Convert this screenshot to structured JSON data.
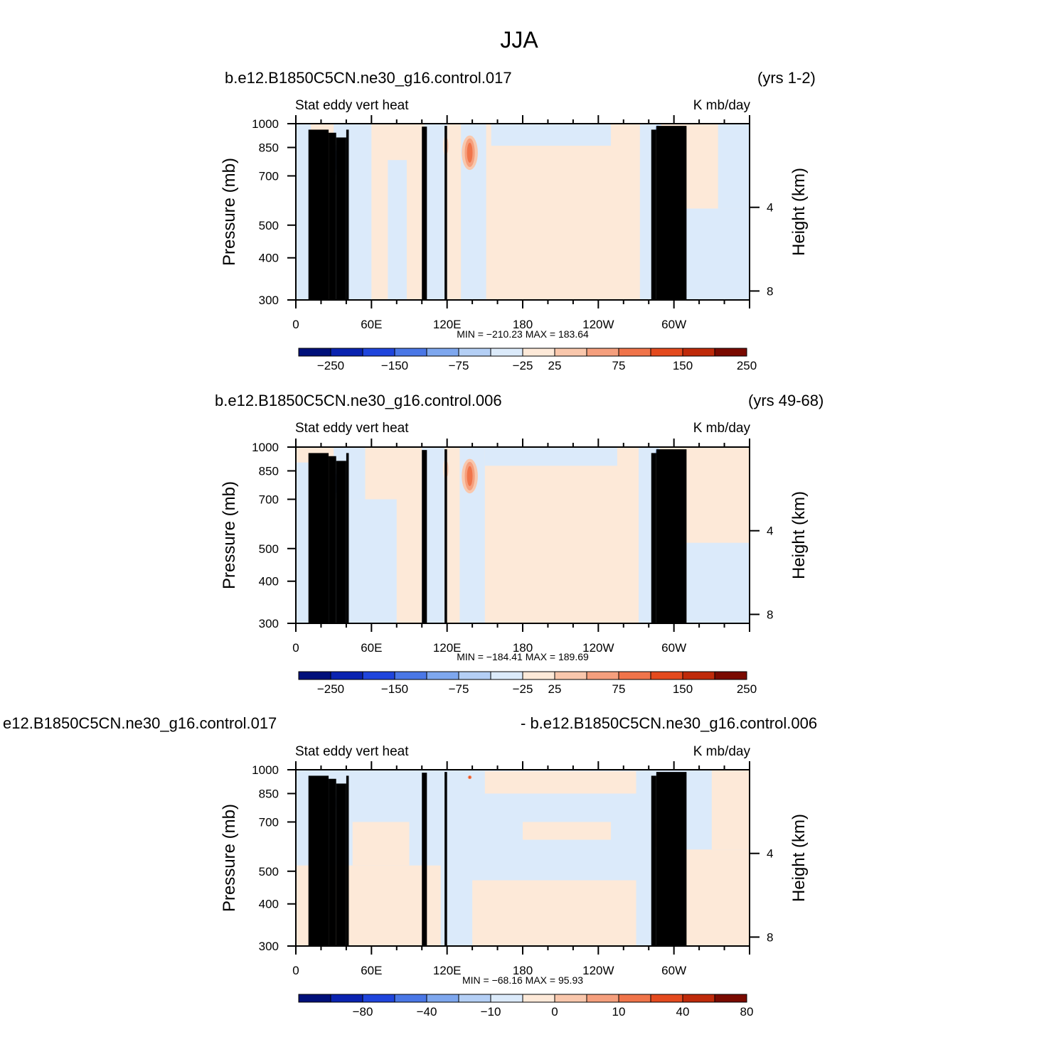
{
  "figure": {
    "title": "JJA"
  },
  "chart_data": [
    {
      "type": "heatmap",
      "case_label": "b.e12.B1850C5CN.ne30_g16.control.017",
      "years_label": "(yrs 1-2)",
      "title": "Stat  eddy  vert  heat",
      "units": "K  mb/day",
      "xlabel": "",
      "ylabel": "Pressure  (mb)",
      "ylabel_right": "Height  (km)",
      "x_ticks": [
        "0",
        "60E",
        "120E",
        "180",
        "120W",
        "60W"
      ],
      "y_ticks": [
        "300",
        "400",
        "500",
        "700",
        "850",
        "1000"
      ],
      "y_right_ticks": [
        "8",
        "4"
      ],
      "xlim": [
        0,
        360
      ],
      "ylim": [
        1000,
        300
      ],
      "min_max_text": "MIN = −210.23   MAX = 183.64",
      "min": -210.23,
      "max": 183.64,
      "colorbar_labels": [
        "−250",
        "−150",
        "−75",
        "−25",
        "25",
        "75",
        "150",
        "250"
      ],
      "features": [
        {
          "kind": "background",
          "sign": "pos",
          "level": 1,
          "lon": [
            0,
            360
          ]
        },
        {
          "kind": "band",
          "sign": "neg",
          "level": 1,
          "lon": [
            0,
            12
          ],
          "p": [
            300,
            1000
          ]
        },
        {
          "kind": "band",
          "sign": "neg",
          "level": 1,
          "lon": [
            30,
            60
          ],
          "p": [
            300,
            1000
          ]
        },
        {
          "kind": "band",
          "sign": "neg",
          "level": 1,
          "lon": [
            73,
            88
          ],
          "p": [
            300,
            780
          ]
        },
        {
          "kind": "band",
          "sign": "neg",
          "level": 1,
          "lon": [
            102,
            120
          ],
          "p": [
            300,
            1000
          ]
        },
        {
          "kind": "band",
          "sign": "neg",
          "level": 1,
          "lon": [
            131,
            151
          ],
          "p": [
            300,
            1000
          ]
        },
        {
          "kind": "band",
          "sign": "neg",
          "level": 1,
          "lon": [
            155,
            250
          ],
          "p": [
            860,
            1000
          ]
        },
        {
          "kind": "band",
          "sign": "neg",
          "level": 1,
          "lon": [
            273,
            290
          ],
          "p": [
            300,
            1000
          ]
        },
        {
          "kind": "band",
          "sign": "neg",
          "level": 1,
          "lon": [
            307,
            360
          ],
          "p": [
            300,
            560
          ]
        },
        {
          "kind": "band",
          "sign": "neg",
          "level": 1,
          "lon": [
            335,
            360
          ],
          "p": [
            560,
            1000
          ]
        },
        {
          "kind": "blob",
          "sign": "neg",
          "level": 4,
          "lon": 35,
          "p": 780,
          "w": 4,
          "h": 150
        },
        {
          "kind": "blob",
          "sign": "pos",
          "level": 4,
          "lon": 138,
          "p": 820,
          "w": 4,
          "h": 160
        },
        {
          "kind": "blob",
          "sign": "pos",
          "level": 2,
          "lon": 120,
          "p": 860,
          "w": 2,
          "h": 120
        },
        {
          "kind": "line",
          "sign": "neg",
          "level": 5,
          "lon": 282,
          "p": [
            300,
            930
          ],
          "w": 2
        },
        {
          "kind": "blob",
          "sign": "pos",
          "level": 3,
          "lon": 290,
          "p": 780,
          "w": 4,
          "h": 230
        },
        {
          "kind": "blob",
          "sign": "pos",
          "level": 2,
          "lon": 296,
          "p": 760,
          "w": 4,
          "h": 260
        },
        {
          "kind": "blob",
          "sign": "neg",
          "level": 3,
          "lon": 287,
          "p": 960,
          "w": 2,
          "h": 60
        }
      ],
      "topography": [
        {
          "lon": [
            10,
            26
          ],
          "p": 960
        },
        {
          "lon": [
            26,
            32
          ],
          "p": 940
        },
        {
          "lon": [
            32,
            40
          ],
          "p": 910
        },
        {
          "lon": [
            40,
            42
          ],
          "p": 960
        },
        {
          "lon": [
            100,
            104
          ],
          "p": 980
        },
        {
          "lon": [
            118,
            120
          ],
          "p": 985
        },
        {
          "lon": [
            282,
            286
          ],
          "p": 960
        },
        {
          "lon": [
            286,
            310
          ],
          "p": 985
        }
      ]
    },
    {
      "type": "heatmap",
      "case_label": "b.e12.B1850C5CN.ne30_g16.control.006",
      "years_label": "(yrs 49-68)",
      "title": "Stat  eddy  vert  heat",
      "units": "K  mb/day",
      "xlabel": "",
      "ylabel": "Pressure  (mb)",
      "ylabel_right": "Height  (km)",
      "x_ticks": [
        "0",
        "60E",
        "120E",
        "180",
        "120W",
        "60W"
      ],
      "y_ticks": [
        "300",
        "400",
        "500",
        "700",
        "850",
        "1000"
      ],
      "y_right_ticks": [
        "8",
        "4"
      ],
      "xlim": [
        0,
        360
      ],
      "ylim": [
        1000,
        300
      ],
      "min_max_text": "MIN = −184.41   MAX = 189.69",
      "min": -184.41,
      "max": 189.69,
      "colorbar_labels": [
        "−250",
        "−150",
        "−75",
        "−25",
        "25",
        "75",
        "150",
        "250"
      ],
      "features": [
        {
          "kind": "background",
          "sign": "pos",
          "level": 1,
          "lon": [
            0,
            360
          ]
        },
        {
          "kind": "band",
          "sign": "neg",
          "level": 1,
          "lon": [
            0,
            10
          ],
          "p": [
            300,
            900
          ]
        },
        {
          "kind": "band",
          "sign": "neg",
          "level": 1,
          "lon": [
            22,
            80
          ],
          "p": [
            300,
            700
          ]
        },
        {
          "kind": "band",
          "sign": "neg",
          "level": 1,
          "lon": [
            30,
            55
          ],
          "p": [
            700,
            1000
          ]
        },
        {
          "kind": "band",
          "sign": "neg",
          "level": 1,
          "lon": [
            100,
            118
          ],
          "p": [
            300,
            1000
          ]
        },
        {
          "kind": "band",
          "sign": "neg",
          "level": 1,
          "lon": [
            130,
            150
          ],
          "p": [
            300,
            1000
          ]
        },
        {
          "kind": "band",
          "sign": "neg",
          "level": 1,
          "lon": [
            150,
            255
          ],
          "p": [
            880,
            1000
          ]
        },
        {
          "kind": "band",
          "sign": "neg",
          "level": 1,
          "lon": [
            272,
            288
          ],
          "p": [
            300,
            1000
          ]
        },
        {
          "kind": "band",
          "sign": "neg",
          "level": 1,
          "lon": [
            310,
            360
          ],
          "p": [
            300,
            520
          ]
        },
        {
          "kind": "blob",
          "sign": "neg",
          "level": 4,
          "lon": 35,
          "p": 780,
          "w": 4,
          "h": 150
        },
        {
          "kind": "blob",
          "sign": "pos",
          "level": 4,
          "lon": 138,
          "p": 820,
          "w": 4,
          "h": 160
        },
        {
          "kind": "blob",
          "sign": "pos",
          "level": 2,
          "lon": 120,
          "p": 860,
          "w": 2,
          "h": 120
        },
        {
          "kind": "line",
          "sign": "neg",
          "level": 5,
          "lon": 282,
          "p": [
            300,
            930
          ],
          "w": 2
        },
        {
          "kind": "blob",
          "sign": "pos",
          "level": 3,
          "lon": 290,
          "p": 780,
          "w": 4,
          "h": 230
        },
        {
          "kind": "blob",
          "sign": "pos",
          "level": 2,
          "lon": 296,
          "p": 760,
          "w": 4,
          "h": 260
        },
        {
          "kind": "blob",
          "sign": "neg",
          "level": 3,
          "lon": 287,
          "p": 960,
          "w": 2,
          "h": 60
        }
      ],
      "topography": [
        {
          "lon": [
            10,
            26
          ],
          "p": 960
        },
        {
          "lon": [
            26,
            32
          ],
          "p": 940
        },
        {
          "lon": [
            32,
            40
          ],
          "p": 910
        },
        {
          "lon": [
            40,
            42
          ],
          "p": 960
        },
        {
          "lon": [
            100,
            104
          ],
          "p": 980
        },
        {
          "lon": [
            118,
            120
          ],
          "p": 985
        },
        {
          "lon": [
            282,
            286
          ],
          "p": 960
        },
        {
          "lon": [
            286,
            310
          ],
          "p": 985
        }
      ]
    },
    {
      "type": "heatmap",
      "case_label": "e12.B1850C5CN.ne30_g16.control.017",
      "years_label": "- b.e12.B1850C5CN.ne30_g16.control.006",
      "title": "Stat  eddy  vert  heat",
      "units": "K  mb/day",
      "xlabel": "",
      "ylabel": "Pressure  (mb)",
      "ylabel_right": "Height  (km)",
      "x_ticks": [
        "0",
        "60E",
        "120E",
        "180",
        "120W",
        "60W"
      ],
      "y_ticks": [
        "300",
        "400",
        "500",
        "700",
        "850",
        "1000"
      ],
      "y_right_ticks": [
        "8",
        "4"
      ],
      "xlim": [
        0,
        360
      ],
      "ylim": [
        1000,
        300
      ],
      "min_max_text": "MIN = −68.16   MAX =   95.93",
      "min": -68.16,
      "max": 95.93,
      "colorbar_labels": [
        "−80",
        "−40",
        "−10",
        "0",
        "10",
        "40",
        "80"
      ],
      "features": [
        {
          "kind": "background",
          "sign": "neg",
          "level": 1,
          "lon": [
            0,
            360
          ]
        },
        {
          "kind": "band",
          "sign": "pos",
          "level": 1,
          "lon": [
            0,
            115
          ],
          "p": [
            300,
            520
          ]
        },
        {
          "kind": "band",
          "sign": "pos",
          "level": 1,
          "lon": [
            45,
            90
          ],
          "p": [
            520,
            700
          ]
        },
        {
          "kind": "band",
          "sign": "pos",
          "level": 1,
          "lon": [
            140,
            270
          ],
          "p": [
            300,
            470
          ]
        },
        {
          "kind": "band",
          "sign": "pos",
          "level": 1,
          "lon": [
            180,
            250
          ],
          "p": [
            620,
            700
          ]
        },
        {
          "kind": "band",
          "sign": "pos",
          "level": 1,
          "lon": [
            150,
            270
          ],
          "p": [
            850,
            990
          ]
        },
        {
          "kind": "band",
          "sign": "pos",
          "level": 1,
          "lon": [
            295,
            360
          ],
          "p": [
            300,
            580
          ]
        },
        {
          "kind": "band",
          "sign": "pos",
          "level": 1,
          "lon": [
            330,
            360
          ],
          "p": [
            580,
            1000
          ]
        },
        {
          "kind": "line",
          "sign": "pos",
          "level": 3,
          "lon": 116,
          "p": [
            300,
            950
          ],
          "w": 2
        },
        {
          "kind": "line",
          "sign": "neg",
          "level": 2,
          "lon": 137,
          "p": [
            300,
            980
          ],
          "w": 3
        },
        {
          "kind": "blob",
          "sign": "neg",
          "level": 4,
          "lon": 35,
          "p": 800,
          "w": 2,
          "h": 140
        },
        {
          "kind": "line",
          "sign": "neg",
          "level": 3,
          "lon": 282,
          "p": [
            300,
            980
          ],
          "w": 2
        },
        {
          "kind": "blob",
          "sign": "pos",
          "level": 3,
          "lon": 287,
          "p": 640,
          "w": 2,
          "h": 120
        },
        {
          "kind": "blob",
          "sign": "pos",
          "level": 5,
          "lon": 138,
          "p": 950,
          "w": 1,
          "h": 20
        }
      ],
      "topography": [
        {
          "lon": [
            10,
            26
          ],
          "p": 960
        },
        {
          "lon": [
            26,
            32
          ],
          "p": 940
        },
        {
          "lon": [
            32,
            40
          ],
          "p": 910
        },
        {
          "lon": [
            40,
            42
          ],
          "p": 960
        },
        {
          "lon": [
            100,
            104
          ],
          "p": 980
        },
        {
          "lon": [
            118,
            120
          ],
          "p": 985
        },
        {
          "lon": [
            282,
            286
          ],
          "p": 960
        },
        {
          "lon": [
            286,
            310
          ],
          "p": 985
        }
      ]
    }
  ],
  "palette": {
    "neg": [
      "#dbeafa",
      "#b4cff5",
      "#7ea7ee",
      "#4a77e6",
      "#1f45dc",
      "#0a23b0",
      "#00107a"
    ],
    "pos": [
      "#fde9d8",
      "#f9c7ac",
      "#f59f7d",
      "#f0744a",
      "#e44a1e",
      "#bf2a0a",
      "#7a0a00"
    ],
    "zero_band_neg": "#dbeafa",
    "zero_band_pos": "#fde9d8",
    "topography": "#000000"
  }
}
